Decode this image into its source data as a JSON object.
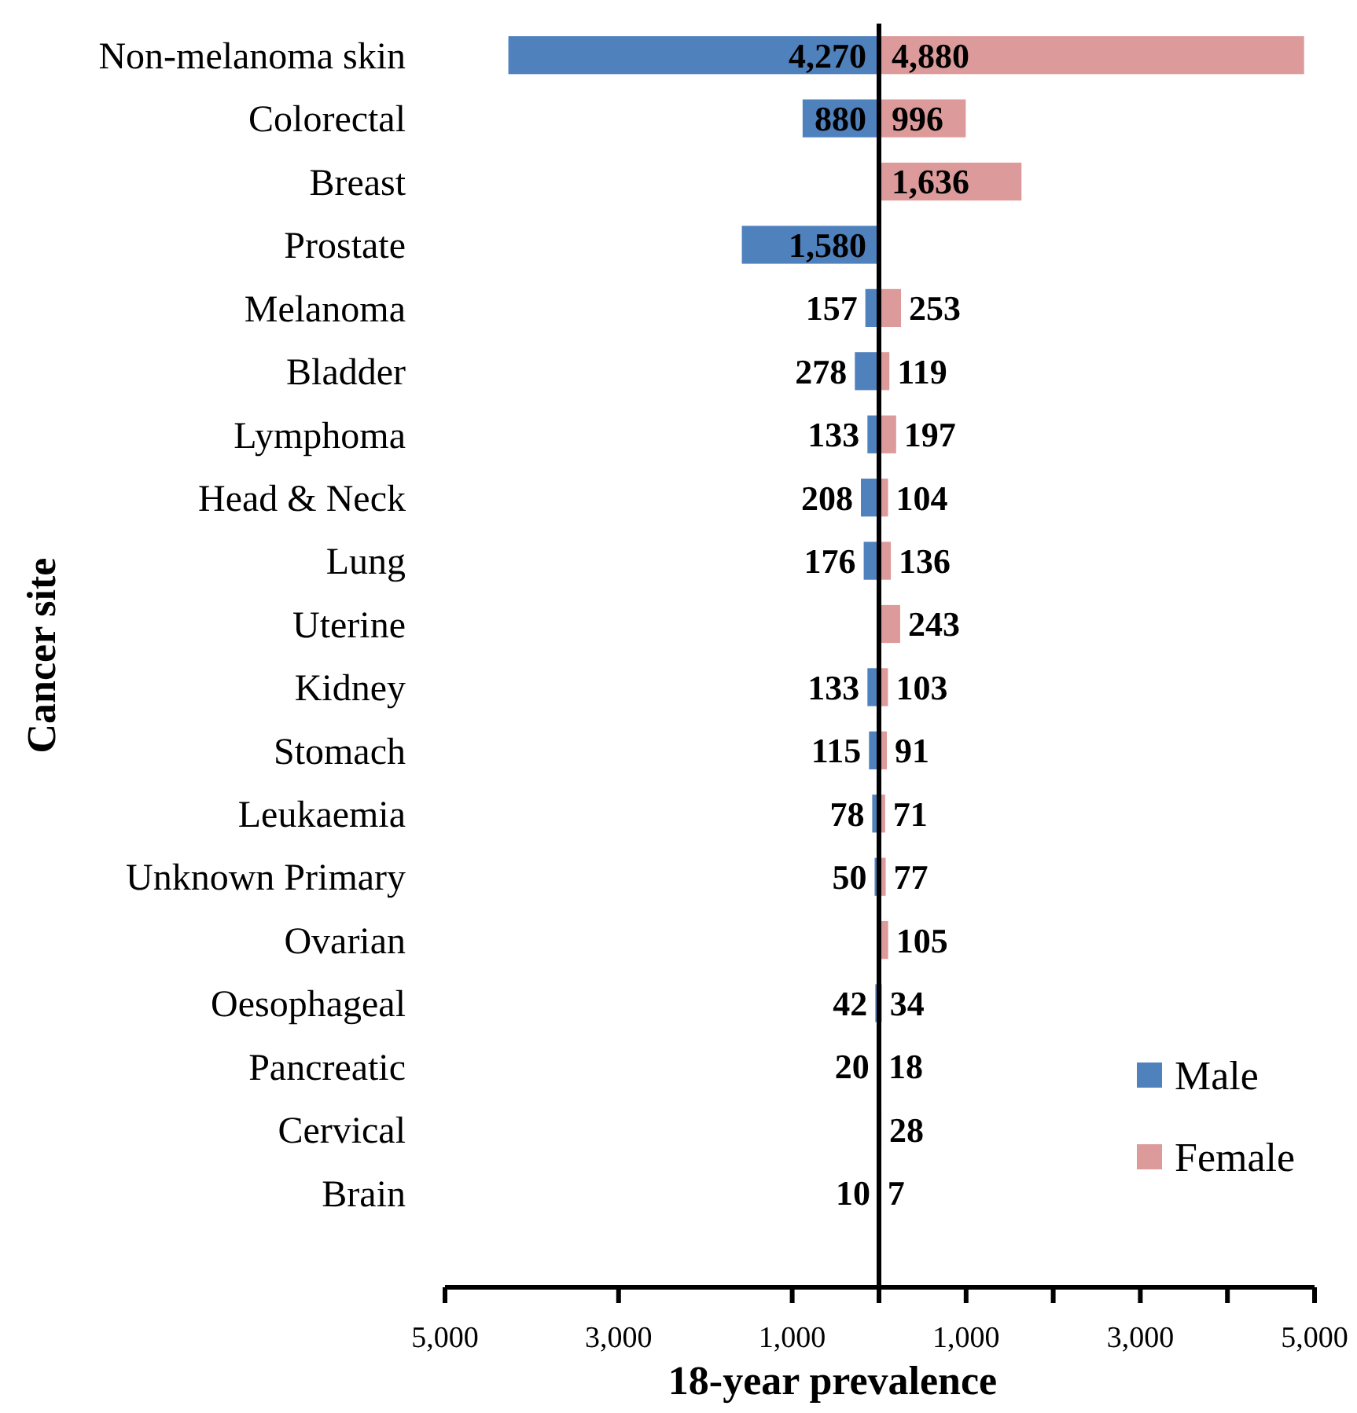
{
  "chart_data": [
    {
      "type": "bar",
      "orientation": "horizontal",
      "xlabel": "18-year prevalence",
      "ylabel": "Cancer site",
      "categories": [
        "Non-melanoma skin",
        "Colorectal",
        "Breast",
        "Prostate",
        "Melanoma",
        "Bladder",
        "Lymphoma",
        "Head & Neck",
        "Lung",
        "Uterine",
        "Kidney",
        "Stomach",
        "Leukaemia",
        "Unknown Primary",
        "Ovarian",
        "Oesophageal",
        "Pancreatic",
        "Cervical",
        "Brain"
      ],
      "series": [
        {
          "name": "Male",
          "color": "#4f81bd",
          "values": [
            4270,
            880,
            null,
            1580,
            157,
            278,
            133,
            208,
            176,
            null,
            133,
            115,
            78,
            50,
            null,
            42,
            20,
            null,
            10
          ],
          "value_labels": [
            "4,270",
            "880",
            null,
            "1,580",
            "157",
            "278",
            "133",
            "208",
            "176",
            null,
            "133",
            "115",
            "78",
            "50",
            null,
            "42",
            "20",
            null,
            "10"
          ]
        }
      ],
      "xlim": [
        5000,
        0
      ],
      "xticks": [
        {
          "value": 5000,
          "label": "5,000"
        },
        {
          "value": 3000,
          "label": "3,000"
        },
        {
          "value": 1000,
          "label": "1,000"
        }
      ],
      "legend": "bottom right"
    },
    {
      "type": "bar",
      "orientation": "horizontal",
      "categories": [
        null,
        null,
        null,
        null,
        null,
        null,
        null,
        null,
        null,
        null,
        null,
        null,
        null,
        null,
        null,
        null,
        null,
        null,
        null
      ],
      "series": [
        {
          "name": "Female",
          "color": "#dd9a9a",
          "values": [
            4880,
            996,
            1636,
            null,
            253,
            119,
            197,
            104,
            136,
            243,
            103,
            91,
            71,
            77,
            105,
            34,
            18,
            28,
            7
          ],
          "value_labels": [
            "4,880",
            "996",
            "1,636",
            null,
            "253",
            "119",
            "197",
            "104",
            "136",
            "243",
            "103",
            "91",
            "71",
            "77",
            "105",
            "34",
            "18",
            "28",
            "7"
          ]
        }
      ],
      "xlim": [
        0,
        5000
      ],
      "xticks": [
        {
          "value": 0,
          "label": null
        },
        {
          "value": 1000,
          "label": "1,000"
        },
        {
          "value": 2000,
          "label": null
        },
        {
          "value": 3000,
          "label": "3,000"
        },
        {
          "value": 4000,
          "label": null
        },
        {
          "value": 5000,
          "label": "5,000"
        }
      ],
      "legend": "bottom right"
    }
  ]
}
